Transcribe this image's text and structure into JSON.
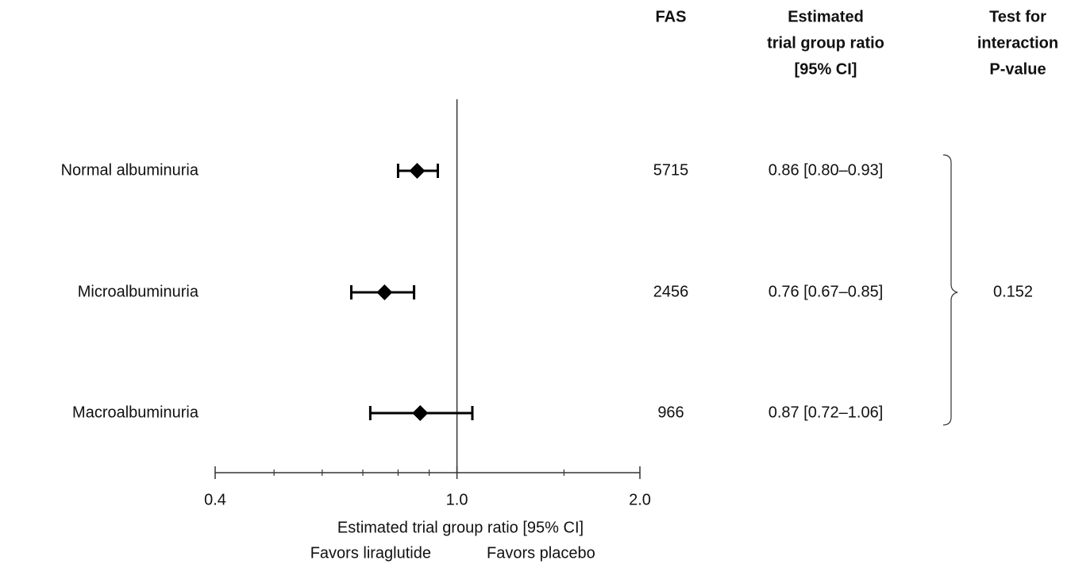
{
  "chart_data": {
    "type": "forest",
    "categories": [
      "Normal albuminuria",
      "Microalbuminuria",
      "Macroalbuminuria"
    ],
    "estimates": [
      0.86,
      0.76,
      0.87
    ],
    "lower": [
      0.8,
      0.67,
      0.72
    ],
    "upper": [
      0.93,
      0.85,
      1.06
    ],
    "fas": [
      5715,
      2456,
      966
    ],
    "ci_labels": [
      "0.86 [0.80–0.93]",
      "0.76 [0.67–0.85]",
      "0.87 [0.72–1.06]"
    ],
    "p_value": 0.152,
    "headers": {
      "fas": [
        "FAS"
      ],
      "ratio": [
        "Estimated",
        "trial group ratio",
        "[95% CI]"
      ],
      "test": [
        "Test for",
        "interaction",
        "P-value"
      ]
    },
    "x_label": "Estimated trial group ratio [95% CI]",
    "favors_left": "Favors liraglutide",
    "favors_right": "Favors placebo",
    "log_x": true,
    "xlim": [
      0.4,
      2.0
    ],
    "xticks": [
      0.4,
      {
        "value": 1,
        "label": "1.0"
      },
      {
        "value": 2,
        "label": "2.0"
      }
    ],
    "xminor_ticks": [
      0.5,
      0.6,
      0.7,
      0.8,
      0.9,
      1.5
    ],
    "reference_x": 1,
    "color": "#000000"
  }
}
